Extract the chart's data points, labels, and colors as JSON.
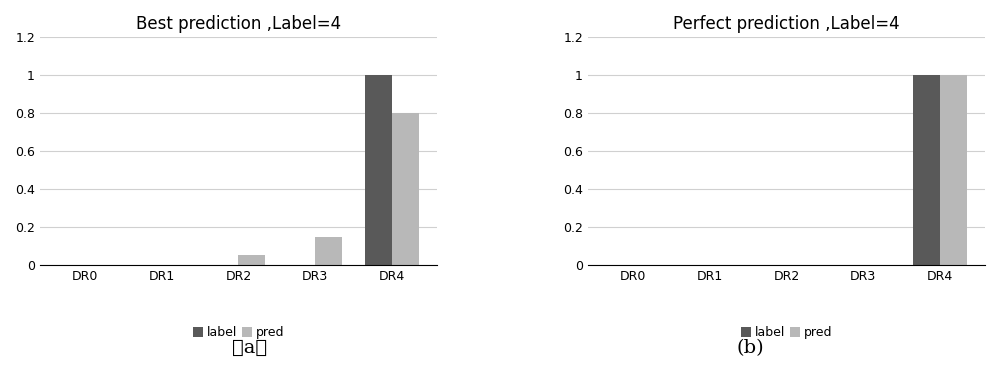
{
  "chart_a": {
    "title": "Best prediction ,Label=4",
    "categories": [
      "DR0",
      "DR1",
      "DR2",
      "DR3",
      "DR4"
    ],
    "label_values": [
      0,
      0,
      0,
      0,
      1.0
    ],
    "pred_values": [
      0,
      0,
      0.05,
      0.15,
      0.8
    ],
    "label_color": "#595959",
    "pred_color": "#b8b8b8",
    "caption": "（a）"
  },
  "chart_b": {
    "title": "Perfect prediction ,Label=4",
    "categories": [
      "DR0",
      "DR1",
      "DR2",
      "DR3",
      "DR4"
    ],
    "label_values": [
      0,
      0,
      0,
      0,
      1.0
    ],
    "pred_values": [
      0,
      0,
      0,
      0,
      1.0
    ],
    "label_color": "#595959",
    "pred_color": "#b8b8b8",
    "caption": "(b)"
  },
  "ylim": [
    0,
    1.2
  ],
  "yticks": [
    0,
    0.2,
    0.4,
    0.6,
    0.8,
    1.0,
    1.2
  ],
  "bar_width": 0.35,
  "legend_labels": [
    "label",
    "pred"
  ],
  "background_color": "#ffffff",
  "title_fontsize": 12,
  "tick_fontsize": 9,
  "legend_fontsize": 9,
  "caption_fontsize": 14
}
